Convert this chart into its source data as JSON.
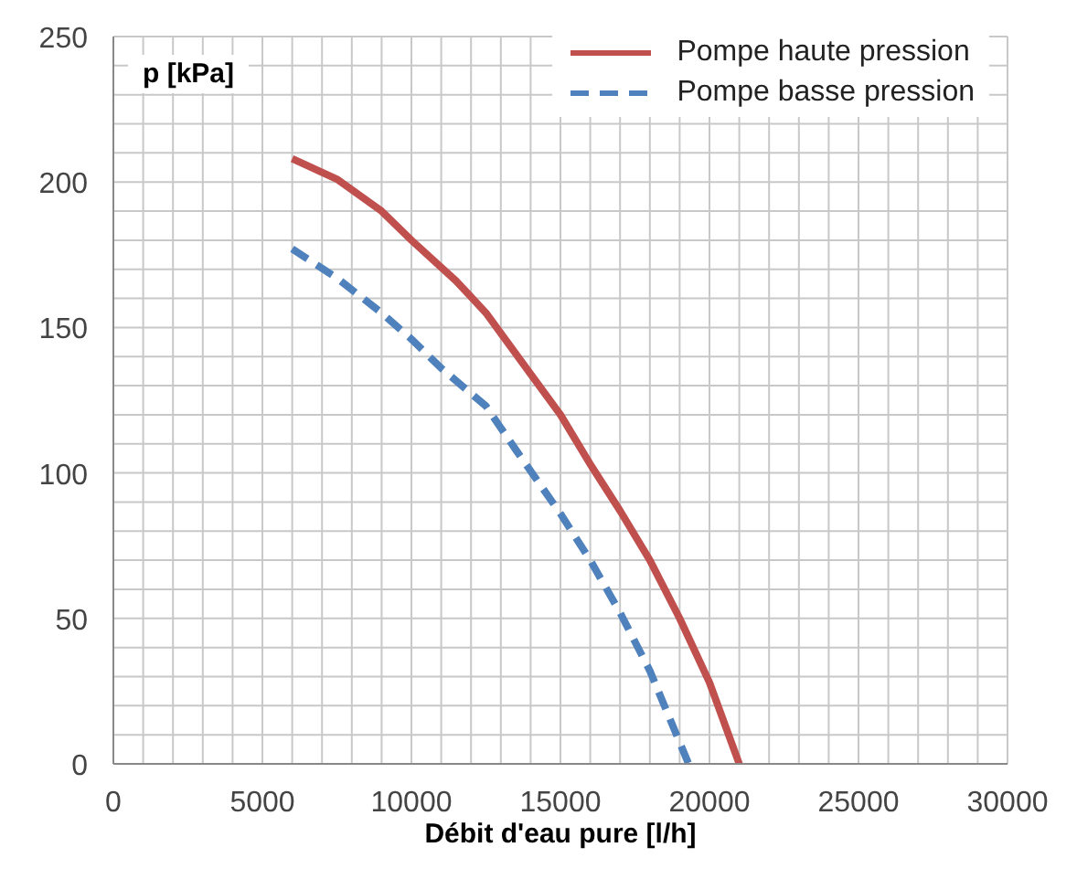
{
  "chart_data": {
    "type": "line",
    "xlabel": "Débit d'eau pure [l/h]",
    "ylabel": "p [kPa]",
    "xlim": [
      0,
      30000
    ],
    "ylim": [
      0,
      250
    ],
    "xticks": [
      0,
      {
        "value": 1000,
        "label": null
      },
      {
        "value": 2000,
        "label": null
      },
      {
        "value": 3000,
        "label": null
      },
      {
        "value": 4000,
        "label": null
      },
      5000,
      {
        "value": 6000,
        "label": null
      },
      {
        "value": 7000,
        "label": null
      },
      {
        "value": 8000,
        "label": null
      },
      {
        "value": 9000,
        "label": null
      },
      10000,
      {
        "value": 11000,
        "label": null
      },
      {
        "value": 12000,
        "label": null
      },
      {
        "value": 13000,
        "label": null
      },
      {
        "value": 14000,
        "label": null
      },
      15000,
      {
        "value": 16000,
        "label": null
      },
      {
        "value": 17000,
        "label": null
      },
      {
        "value": 18000,
        "label": null
      },
      {
        "value": 19000,
        "label": null
      },
      20000,
      {
        "value": 21000,
        "label": null
      },
      {
        "value": 22000,
        "label": null
      },
      {
        "value": 23000,
        "label": null
      },
      {
        "value": 24000,
        "label": null
      },
      25000,
      {
        "value": 26000,
        "label": null
      },
      {
        "value": 27000,
        "label": null
      },
      {
        "value": 28000,
        "label": null
      },
      {
        "value": 29000,
        "label": null
      },
      30000
    ],
    "yticks": [
      0,
      {
        "value": 10,
        "label": null
      },
      {
        "value": 20,
        "label": null
      },
      {
        "value": 30,
        "label": null
      },
      {
        "value": 40,
        "label": null
      },
      50,
      {
        "value": 60,
        "label": null
      },
      {
        "value": 70,
        "label": null
      },
      {
        "value": 80,
        "label": null
      },
      {
        "value": 90,
        "label": null
      },
      100,
      {
        "value": 110,
        "label": null
      },
      {
        "value": 120,
        "label": null
      },
      {
        "value": 130,
        "label": null
      },
      {
        "value": 140,
        "label": null
      },
      150,
      {
        "value": 160,
        "label": null
      },
      {
        "value": 170,
        "label": null
      },
      {
        "value": 180,
        "label": null
      },
      {
        "value": 190,
        "label": null
      },
      200,
      {
        "value": 210,
        "label": null
      },
      {
        "value": 220,
        "label": null
      },
      {
        "value": 230,
        "label": null
      },
      {
        "value": 240,
        "label": null
      },
      250
    ],
    "grid": true,
    "legend": "top right",
    "marker": "none",
    "series": [
      {
        "name": "Pompe haute pression",
        "color": "#c0504d",
        "line_style": "solid",
        "x": [
          6000,
          7500,
          9000,
          10000,
          11500,
          12500,
          14000,
          15000,
          16000,
          17000,
          18000,
          19000,
          20000,
          21000
        ],
        "values": [
          208,
          201,
          190,
          180,
          166,
          155,
          134,
          120,
          103,
          87,
          70,
          50,
          28,
          0
        ]
      },
      {
        "name": "Pompe basse pression",
        "color": "#4f81bd",
        "line_style": "dashed",
        "x": [
          6000,
          7500,
          9000,
          10000,
          11000,
          12500,
          13500,
          15000,
          16000,
          17000,
          18000,
          19300
        ],
        "values": [
          177,
          167,
          155,
          146,
          136,
          123,
          108,
          86,
          70,
          52,
          32,
          0
        ]
      }
    ]
  }
}
